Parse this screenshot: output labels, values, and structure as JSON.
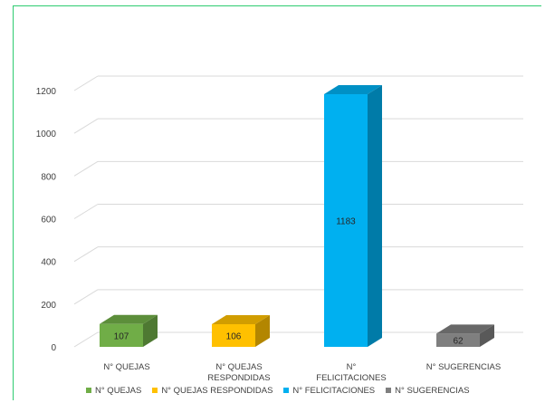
{
  "chart_data": {
    "type": "bar",
    "title": "",
    "xlabel": "",
    "ylabel": "",
    "categories": [
      "N° QUEJAS",
      "N° QUEJAS RESPONDIDAS",
      "N° FELICITACIONES",
      "N° SUGERENCIAS"
    ],
    "values": [
      107,
      106,
      1183,
      62
    ],
    "data_labels": [
      "107",
      "106",
      "1183",
      "62"
    ],
    "colors": [
      "#70ad47",
      "#ffc000",
      "#00b0f0",
      "#7f7f7f"
    ],
    "ylim": [
      0,
      1200
    ],
    "yticks": [
      0,
      200,
      400,
      600,
      800,
      1000,
      1200
    ],
    "ytick_labels": [
      "0",
      "200",
      "400",
      "600",
      "800",
      "1000",
      "1200"
    ],
    "grid": true,
    "legend_placement": "bottom",
    "legend": [
      {
        "label": "N° QUEJAS",
        "color": "#70ad47"
      },
      {
        "label": "N° QUEJAS RESPONDIDAS",
        "color": "#ffc000"
      },
      {
        "label": "N° FELICITACIONES",
        "color": "#00b0f0"
      },
      {
        "label": "N° SUGERENCIAS",
        "color": "#7f7f7f"
      }
    ],
    "style": "3d-column"
  }
}
